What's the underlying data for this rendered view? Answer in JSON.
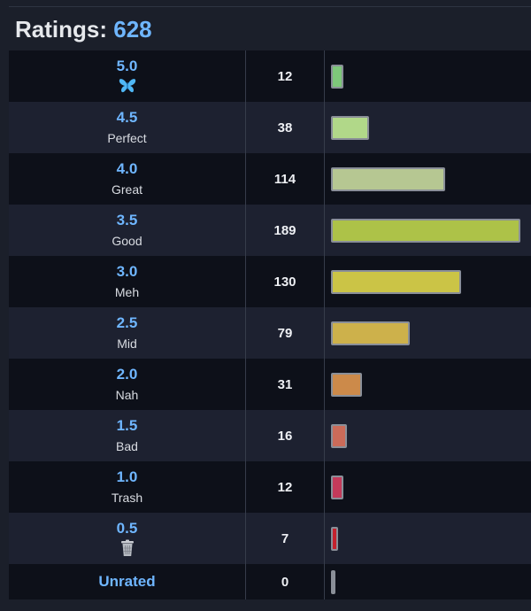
{
  "header": {
    "title": "Ratings:",
    "total": "628"
  },
  "colors": {
    "accent": "#6fb6ff",
    "bar_border": "#8a8f98",
    "row_odd": "#1d2130",
    "row_even": "#0d1019"
  },
  "chart_data": {
    "type": "bar",
    "orientation": "horizontal",
    "title": "Ratings: 628",
    "categories": [
      "5.0",
      "4.5",
      "4.0",
      "3.5",
      "3.0",
      "2.5",
      "2.0",
      "1.5",
      "1.0",
      "0.5",
      "Unrated"
    ],
    "labels": [
      "",
      "Perfect",
      "Great",
      "Good",
      "Meh",
      "Mid",
      "Nah",
      "Bad",
      "Trash",
      "",
      ""
    ],
    "icons": [
      "butterfly-icon",
      "",
      "",
      "",
      "",
      "",
      "",
      "",
      "",
      "trash-can-icon",
      ""
    ],
    "values": [
      12,
      38,
      114,
      189,
      130,
      79,
      31,
      16,
      12,
      7,
      0
    ],
    "bar_colors": [
      "#7ec77a",
      "#b1d889",
      "#b6c792",
      "#adc248",
      "#cbc446",
      "#cdb14b",
      "#cc8a4a",
      "#cb6b59",
      "#c43a5a",
      "#c4222e",
      "#8a8f98"
    ],
    "xlim": [
      0,
      189
    ],
    "grid": false,
    "legend": "none"
  }
}
